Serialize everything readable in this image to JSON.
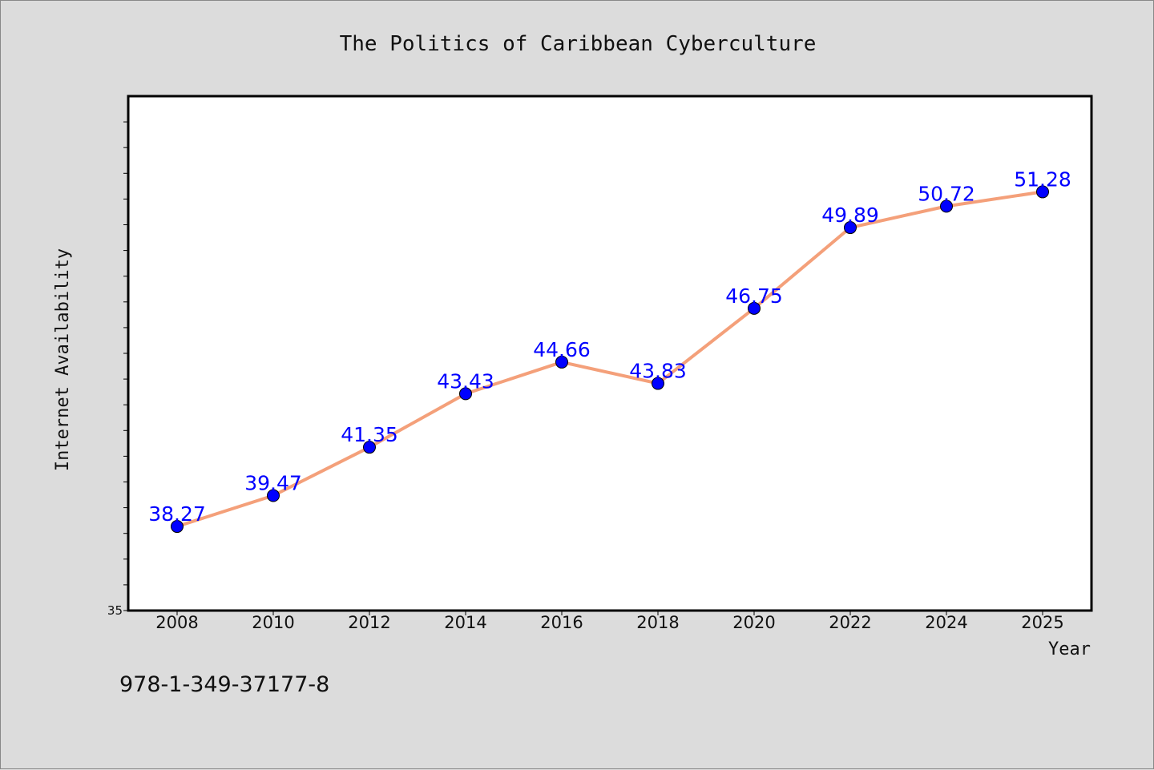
{
  "chart_data": {
    "type": "line",
    "title": "The Politics of Caribbean Cyberculture",
    "xlabel": "Year",
    "ylabel": "Internet Availability",
    "categories": [
      "2008",
      "2010",
      "2012",
      "2014",
      "2016",
      "2018",
      "2020",
      "2022",
      "2024",
      "2025"
    ],
    "series": [
      {
        "values": [
          38.27,
          39.47,
          41.35,
          43.43,
          44.66,
          43.83,
          46.75,
          49.89,
          50.72,
          51.28
        ],
        "line_color": "#f4a07a",
        "marker_color": "#0000ff"
      }
    ],
    "data_labels": [
      "38.27",
      "39.47",
      "41.35",
      "43.43",
      "44.66",
      "43.83",
      "46.75",
      "49.89",
      "50.72",
      "51.28"
    ],
    "ylim": [
      35,
      55
    ],
    "y_tick_labels": [
      "35"
    ],
    "grid": false,
    "legend": "none"
  },
  "footer": {
    "isbn": "978-1-349-37177-8"
  }
}
